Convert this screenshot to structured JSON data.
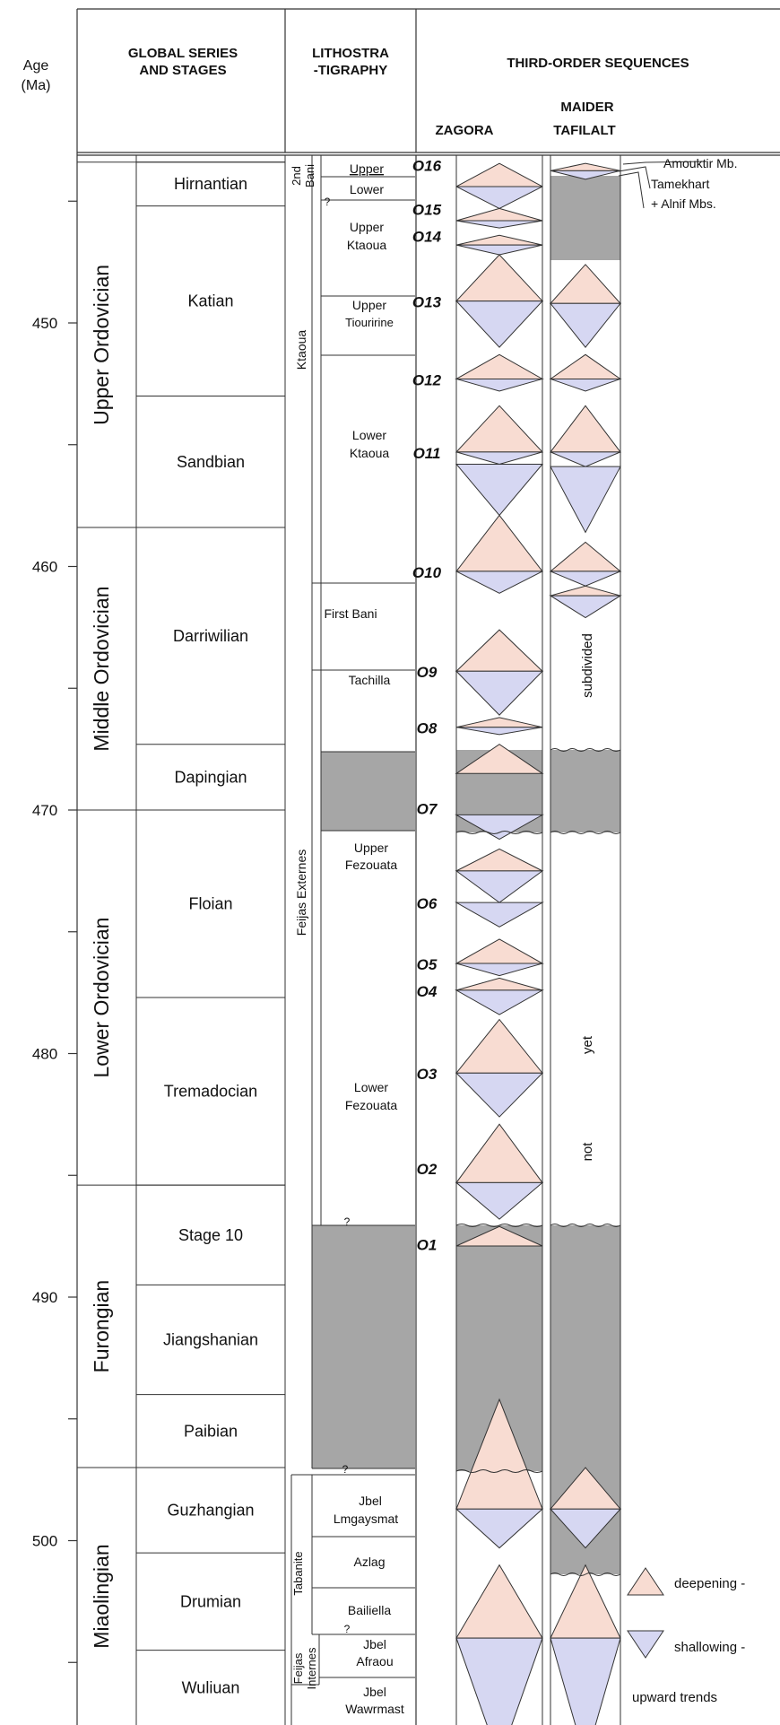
{
  "header": {
    "age_line1": "Age",
    "age_line2": "(Ma)",
    "global_line1": "GLOBAL SERIES",
    "global_line2": "AND STAGES",
    "litho_line1": "LITHOSTRA",
    "litho_line2": "-TIGRAPHY",
    "third_order": "THIRD-ORDER SEQUENCES",
    "maider": "MAIDER",
    "zagora": "ZAGORA",
    "tafilalt": "TAFILALT"
  },
  "age_ticks": [
    "450",
    "460",
    "470",
    "480",
    "490",
    "500"
  ],
  "series": [
    {
      "label": "Upper Ordovician",
      "top": 443.4,
      "bottom": 458.4
    },
    {
      "label": "Middle Ordovician",
      "top": 458.4,
      "bottom": 470.0
    },
    {
      "label": "Lower Ordovician",
      "top": 470.0,
      "bottom": 485.4
    },
    {
      "label": "Furongian",
      "top": 485.4,
      "bottom": 497.0
    },
    {
      "label": "Miaolingian",
      "top": 497.0,
      "bottom": 509.0
    }
  ],
  "stages": [
    {
      "label": "Hirnantian",
      "top": 443.4,
      "bottom": 445.2
    },
    {
      "label": "Katian",
      "top": 445.2,
      "bottom": 453.0
    },
    {
      "label": "Sandbian",
      "top": 453.0,
      "bottom": 458.4
    },
    {
      "label": "Darriwilian",
      "top": 458.4,
      "bottom": 467.3
    },
    {
      "label": "Dapingian",
      "top": 467.3,
      "bottom": 470.0
    },
    {
      "label": "Floian",
      "top": 470.0,
      "bottom": 477.7
    },
    {
      "label": "Tremadocian",
      "top": 477.7,
      "bottom": 485.4
    },
    {
      "label": "Stage 10",
      "top": 485.4,
      "bottom": 489.5
    },
    {
      "label": "Jiangshanian",
      "top": 489.5,
      "bottom": 494.0
    },
    {
      "label": "Paibian",
      "top": 494.0,
      "bottom": 497.0
    },
    {
      "label": "Guzhangian",
      "top": 497.0,
      "bottom": 500.5
    },
    {
      "label": "Drumian",
      "top": 500.5,
      "bottom": 504.5
    },
    {
      "label": "Wuliuan",
      "top": 504.5,
      "bottom": 509.0
    }
  ],
  "litho": {
    "second_bani_l1": "2nd",
    "second_bani_l2": "Bani",
    "ktaoua": "Ktaoua",
    "upper": "Upper",
    "lower": "Lower",
    "upper_ktaoua_l1": "Upper",
    "upper_ktaoua_l2": "Ktaoua",
    "upper_tiouririne_l1": "Upper",
    "upper_tiouririne_l2": "Tiouririne",
    "lower_ktaoua_l1": "Lower",
    "lower_ktaoua_l2": "Ktaoua",
    "first_bani": "First Bani",
    "tachilla": "Tachilla",
    "feijas_externes": "Feijas Externes",
    "upper_fezouata_l1": "Upper",
    "upper_fezouata_l2": "Fezouata",
    "lower_fezouata_l1": "Lower",
    "lower_fezouata_l2": "Fezouata",
    "jbel_lmgaysmat_l1": "Jbel",
    "jbel_lmgaysmat_l2": "Lmgaysmat",
    "tabanite": "Tabanite",
    "azlag": "Azlag",
    "bailiella": "Bailiella",
    "feijas_l1": "Feijas",
    "feijas_l2": "Internes",
    "jbel_afraou_l1": "Jbel",
    "jbel_afraou_l2": "Afraou",
    "jbel_wawrmast_l1": "Jbel",
    "jbel_wawrmast_l2": "Wawrmast",
    "q": "?"
  },
  "sequences": [
    {
      "label": "O16",
      "age": 443.5
    },
    {
      "label": "O15",
      "age": 445.3
    },
    {
      "label": "O14",
      "age": 446.4
    },
    {
      "label": "O13",
      "age": 449.1
    },
    {
      "label": "O12",
      "age": 452.3
    },
    {
      "label": "O11",
      "age": 455.3
    },
    {
      "label": "O10",
      "age": 460.2
    },
    {
      "label": "O9",
      "age": 464.3
    },
    {
      "label": "O8",
      "age": 466.6
    },
    {
      "label": "O7",
      "age": 469.9
    },
    {
      "label": "O6",
      "age": 473.8
    },
    {
      "label": "O5",
      "age": 476.3
    },
    {
      "label": "O4",
      "age": 477.4
    },
    {
      "label": "O3",
      "age": 480.8
    },
    {
      "label": "O2",
      "age": 484.7
    },
    {
      "label": "O1",
      "age": 487.8
    }
  ],
  "maider_text": {
    "subdivided": "subdivided",
    "yet": "yet",
    "not": "not"
  },
  "annotations": {
    "amouktir": "Amouktir Mb.",
    "tamekhart": "Tamekhart",
    "alnif": "+ Alnif Mbs."
  },
  "legend": {
    "deepening": "deepening -",
    "shallowing": "shallowing -",
    "upward": "upward trends"
  },
  "colors": {
    "deepening": "#f8dcd2",
    "shallowing": "#d6d7f2",
    "gap": "#a6a6a6",
    "line": "#333333"
  }
}
